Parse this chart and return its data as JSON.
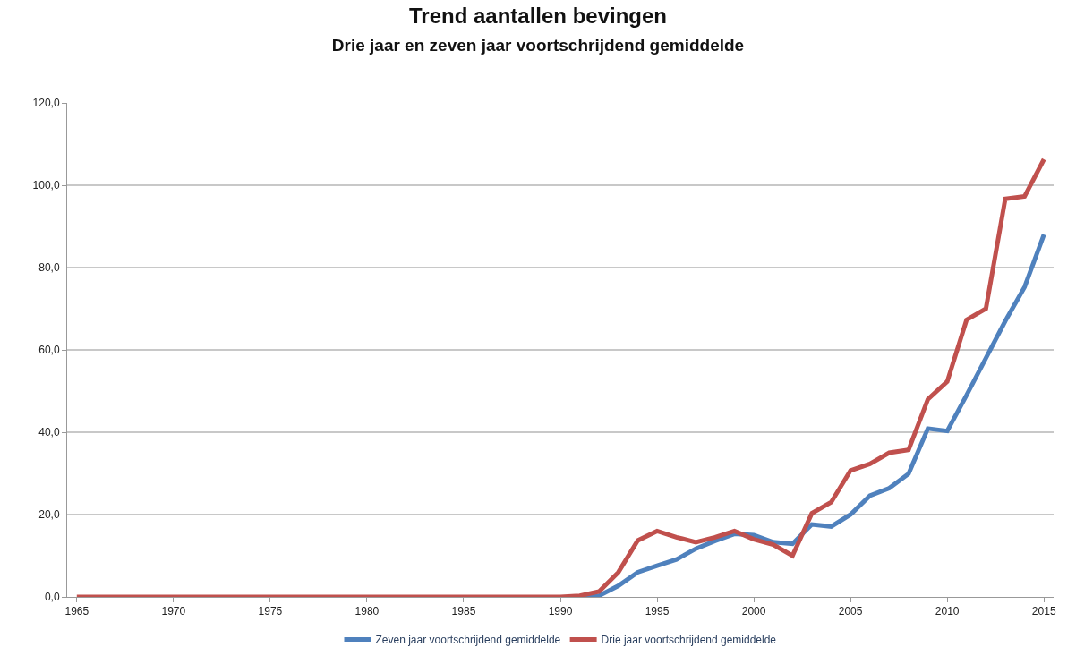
{
  "chart_data": {
    "type": "line",
    "title": "Trend aantallen bevingen",
    "subtitle": "Drie jaar en zeven jaar voortschrijdend gemiddelde",
    "x": [
      1965,
      1966,
      1967,
      1968,
      1969,
      1970,
      1971,
      1972,
      1973,
      1974,
      1975,
      1976,
      1977,
      1978,
      1979,
      1980,
      1981,
      1982,
      1983,
      1984,
      1985,
      1986,
      1987,
      1988,
      1989,
      1990,
      1991,
      1992,
      1993,
      1994,
      1995,
      1996,
      1997,
      1998,
      1999,
      2000,
      2001,
      2002,
      2003,
      2004,
      2005,
      2006,
      2007,
      2008,
      2009,
      2010,
      2011,
      2012,
      2013,
      2014,
      2015
    ],
    "series": [
      {
        "name": "Zeven jaar voortschrijdend gemiddelde",
        "color": "#4f81bd",
        "values": [
          null,
          null,
          null,
          null,
          null,
          null,
          null,
          null,
          null,
          null,
          null,
          null,
          null,
          null,
          null,
          null,
          null,
          null,
          null,
          null,
          null,
          null,
          null,
          null,
          null,
          null,
          0,
          0.3,
          2.7,
          6,
          7.6,
          9.1,
          11.7,
          13.6,
          15.3,
          15,
          13.3,
          12.9,
          17.6,
          17.1,
          20,
          24.6,
          26.4,
          29.9,
          40.9,
          40.3,
          49,
          58,
          67,
          75.3,
          88
        ]
      },
      {
        "name": "Drie jaar voortschrijdend gemiddelde",
        "color": "#c0504d",
        "values": [
          0,
          0,
          0,
          0,
          0,
          0,
          0,
          0,
          0,
          0,
          0,
          0,
          0,
          0,
          0,
          0,
          0,
          0,
          0,
          0,
          0,
          0,
          0,
          0,
          0,
          0,
          0.3,
          1.3,
          6,
          13.7,
          16,
          14.5,
          13.3,
          14.5,
          16,
          14,
          12.7,
          10,
          20.3,
          23,
          30.7,
          32.3,
          35,
          35.7,
          48,
          52.3,
          67.3,
          70,
          96.7,
          97.3,
          106.3
        ]
      }
    ],
    "xlim": [
      1964.5,
      2015.5
    ],
    "xticks": [
      1965,
      1970,
      1975,
      1980,
      1985,
      1990,
      1995,
      2000,
      2005,
      2010,
      2015
    ],
    "ylim": [
      0,
      120
    ],
    "yticks": [
      {
        "value": 0,
        "label": "0,0"
      },
      {
        "value": 20,
        "label": "20,0"
      },
      {
        "value": 40,
        "label": "40,0"
      },
      {
        "value": 60,
        "label": "60,0"
      },
      {
        "value": 80,
        "label": "80,0"
      },
      {
        "value": 100,
        "label": "100,0"
      },
      {
        "value": 120,
        "label": "120,0"
      }
    ],
    "grid": "y",
    "legend": "bottom",
    "marker": "none",
    "line_style": "solid"
  }
}
